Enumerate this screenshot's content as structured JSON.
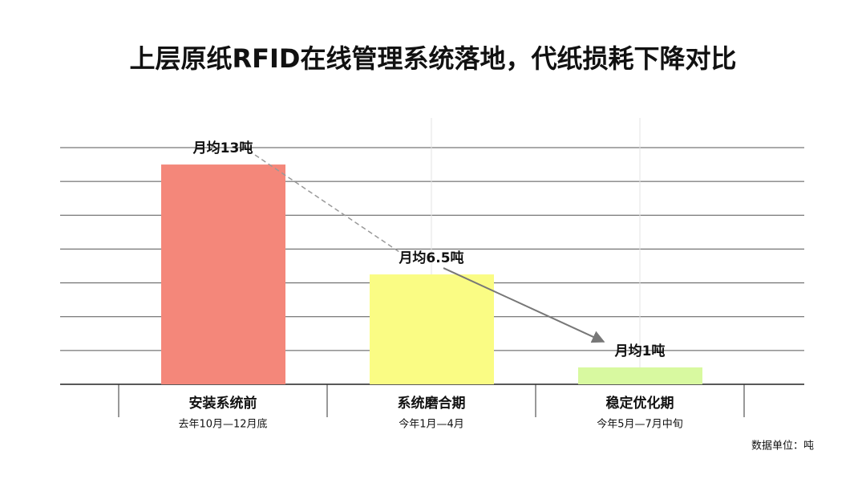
{
  "chart_data": {
    "type": "bar",
    "title": "上层原纸RFID在线管理系统落地，代纸损耗下降对比",
    "categories": [
      "安装系统前",
      "系统磨合期",
      "稳定优化期"
    ],
    "sublabels": [
      "去年10月—12月底",
      "今年1月—4月",
      "今年5月—7月中旬"
    ],
    "values": [
      13,
      6.5,
      1
    ],
    "value_labels": [
      "月均13吨",
      "月均6.5吨",
      "月均1吨"
    ],
    "colors": [
      "#f4877a",
      "#fafc84",
      "#d8f9a0"
    ],
    "ylim": [
      0,
      14
    ],
    "yticks": [
      0,
      2,
      4,
      6,
      8,
      10,
      12,
      14
    ],
    "grid": true,
    "unit_note": "数据单位：吨"
  }
}
